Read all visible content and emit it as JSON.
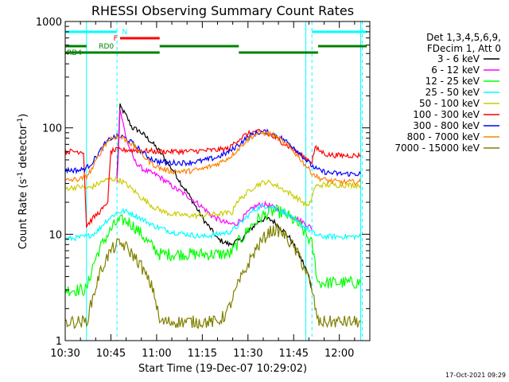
{
  "chart_data": {
    "type": "line",
    "title": "RHESSI Observing Summary Count Rates",
    "xlabel": "Start Time (19-Dec-07 10:29:02)",
    "ylabel_main": "Count Rate (s",
    "ylabel_exp1": "-1",
    "ylabel_mid": " detector",
    "ylabel_exp2": "-1",
    "ylabel_end": ")",
    "x_unit": "minutes since 10:30",
    "xlim": [
      0,
      100
    ],
    "ylim": [
      1,
      1000
    ],
    "yscale": "log",
    "xticks": [
      {
        "t": 0,
        "label": "10:30"
      },
      {
        "t": 15,
        "label": "10:45"
      },
      {
        "t": 30,
        "label": "11:00"
      },
      {
        "t": 45,
        "label": "11:15"
      },
      {
        "t": 60,
        "label": "11:30"
      },
      {
        "t": 75,
        "label": "11:45"
      },
      {
        "t": 90,
        "label": "12:00"
      }
    ],
    "yticks": [
      {
        "v": 1,
        "label": "1"
      },
      {
        "v": 10,
        "label": "10"
      },
      {
        "v": 100,
        "label": "100"
      },
      {
        "v": 1000,
        "label": "1000"
      }
    ],
    "legend_header": [
      "Det 1,3,4,5,6,9,",
      "FDecim 1, Att 0"
    ],
    "legend_position": "right",
    "footer_date": "17-Oct-2021 09:29",
    "vlines_solid": [
      7,
      79,
      97
    ],
    "vlines_dashed": [
      17,
      81,
      97.5
    ],
    "flags": [
      {
        "label": "N",
        "color": "#00ffff",
        "segments": [
          [
            0,
            17
          ],
          [
            81,
            99
          ]
        ],
        "y": 40
      },
      {
        "label": "F",
        "color": "#ff0000",
        "segments": [
          [
            18,
            31
          ]
        ],
        "y": 48
      },
      {
        "label": "RD0",
        "color": "#008000",
        "segments": [
          [
            0,
            7
          ],
          [
            31,
            57
          ],
          [
            83,
            99
          ]
        ],
        "y": 58
      },
      {
        "label": "RD4",
        "color": "#008000",
        "segments": [
          [
            0,
            31
          ],
          [
            57,
            83
          ]
        ],
        "y": 66
      }
    ],
    "series": [
      {
        "name": "3 - 6 keV",
        "color": "#000000",
        "x": [
          17,
          18,
          20,
          22,
          24,
          26,
          28,
          30,
          32,
          34,
          36,
          38,
          40,
          42,
          44,
          46,
          48,
          50,
          52,
          54,
          56,
          58,
          60,
          62,
          64,
          66,
          68,
          70,
          72,
          74,
          76,
          78,
          80,
          81
        ],
        "y": [
          35,
          160,
          130,
          100,
          95,
          85,
          75,
          65,
          55,
          45,
          38,
          30,
          25,
          20,
          16,
          13,
          11,
          9,
          8.5,
          8,
          8.5,
          9,
          10.5,
          12,
          13.5,
          14,
          13.5,
          12,
          10.5,
          9,
          7,
          5.5,
          4,
          3
        ]
      },
      {
        "name": "6 - 12 keV",
        "color": "#ff00ff",
        "x": [
          17,
          18,
          19,
          20,
          21,
          22,
          23,
          24,
          25,
          26,
          28,
          30,
          32,
          34,
          36,
          38,
          40,
          42,
          44,
          46,
          48,
          50,
          52,
          54,
          56,
          58,
          60,
          62,
          64,
          66,
          68,
          70,
          72,
          74,
          76,
          78,
          80,
          81
        ],
        "y": [
          30,
          150,
          110,
          80,
          65,
          55,
          48,
          45,
          42,
          40,
          38,
          36,
          33,
          30,
          27,
          25,
          23,
          21,
          19,
          17,
          15,
          14,
          13,
          12.5,
          12.5,
          14,
          16,
          18,
          19,
          19,
          18,
          17,
          16,
          15,
          14,
          13,
          12,
          11
        ]
      },
      {
        "name": "12 - 25 keV",
        "color": "#00ff00",
        "x": [
          0,
          7,
          9,
          11,
          13,
          15,
          17,
          19,
          21,
          23,
          25,
          27,
          29,
          31,
          33,
          35,
          40,
          45,
          50,
          54,
          55,
          57,
          59,
          61,
          63,
          65,
          67,
          69,
          71,
          73,
          75,
          77,
          79,
          81,
          83,
          90,
          97
        ],
        "y": [
          3,
          3,
          5,
          7,
          9,
          11,
          13,
          13.5,
          13,
          11.5,
          10,
          8.5,
          7.5,
          6.5,
          6.5,
          6.5,
          6.5,
          6.5,
          6.5,
          6.5,
          7,
          8.5,
          10,
          12,
          13.5,
          15,
          16,
          16.5,
          16,
          15,
          13.5,
          12,
          10,
          8,
          3.5,
          3.5,
          3.5
        ]
      },
      {
        "name": "25 - 50 keV",
        "color": "#00ffff",
        "x": [
          0,
          7,
          9,
          11,
          13,
          15,
          17,
          19,
          21,
          23,
          25,
          27,
          29,
          31,
          33,
          35,
          40,
          45,
          50,
          54,
          56,
          58,
          60,
          62,
          64,
          66,
          68,
          70,
          72,
          74,
          76,
          78,
          80,
          82,
          84,
          86,
          88,
          90,
          97
        ],
        "y": [
          9,
          9.5,
          10,
          11,
          13,
          14.5,
          16,
          16.5,
          16,
          15,
          14,
          13,
          12,
          11.5,
          11,
          10.5,
          10,
          9.5,
          10,
          10.5,
          11.5,
          13,
          15,
          17,
          18,
          18.5,
          18,
          17,
          16,
          14.5,
          13,
          12,
          11,
          10,
          9.5,
          9.5,
          9.5,
          9.5,
          9.5
        ]
      },
      {
        "name": "50 - 100 keV",
        "color": "#cccc00",
        "x": [
          0,
          5,
          7,
          9,
          11,
          13,
          15,
          17,
          19,
          21,
          23,
          25,
          27,
          29,
          31,
          33,
          35,
          40,
          45,
          50,
          55,
          56,
          58,
          60,
          62,
          64,
          66,
          68,
          70,
          72,
          74,
          76,
          78,
          80,
          82,
          84,
          90,
          97
        ],
        "y": [
          27,
          28,
          27,
          28,
          30,
          32,
          33,
          33,
          31,
          28,
          25,
          22,
          20,
          18,
          17,
          16,
          15.5,
          15,
          15,
          15.5,
          16,
          20,
          22,
          25,
          28,
          30,
          31,
          30,
          28,
          26,
          24,
          22,
          20,
          18,
          28,
          29,
          29,
          29
        ]
      },
      {
        "name": "100 - 300 keV",
        "color": "#ff0000",
        "x": [
          0,
          6,
          7,
          9,
          11,
          13,
          14,
          15,
          17,
          20,
          25,
          30,
          35,
          40,
          45,
          50,
          54,
          55,
          57,
          59,
          61,
          63,
          65,
          67,
          69,
          71,
          73,
          75,
          77,
          79,
          81,
          82,
          84,
          86,
          90,
          97
        ],
        "y": [
          60,
          60,
          12,
          14,
          16,
          18,
          21,
          60,
          62,
          62,
          61,
          60,
          60,
          60,
          61,
          62,
          64,
          70,
          78,
          85,
          90,
          92,
          90,
          86,
          80,
          74,
          68,
          62,
          56,
          52,
          48,
          65,
          60,
          56,
          55,
          55
        ]
      },
      {
        "name": "300 - 800 keV",
        "color": "#0000ff",
        "x": [
          0,
          5,
          7,
          9,
          11,
          13,
          15,
          17,
          19,
          21,
          23,
          25,
          27,
          29,
          31,
          33,
          35,
          40,
          45,
          50,
          54,
          57,
          59,
          61,
          63,
          65,
          67,
          69,
          71,
          73,
          75,
          77,
          79,
          81,
          83,
          86,
          90,
          97
        ],
        "y": [
          40,
          40,
          42,
          48,
          58,
          70,
          80,
          83,
          82,
          76,
          68,
          60,
          54,
          50,
          48,
          47,
          47,
          47,
          49,
          53,
          60,
          70,
          78,
          85,
          90,
          92,
          90,
          86,
          80,
          73,
          66,
          58,
          50,
          44,
          40,
          38,
          37,
          37
        ]
      },
      {
        "name": "800 - 7000 keV",
        "color": "#ff8000",
        "x": [
          0,
          5,
          7,
          9,
          11,
          13,
          15,
          17,
          19,
          21,
          23,
          25,
          27,
          29,
          31,
          33,
          35,
          40,
          45,
          50,
          54,
          57,
          59,
          61,
          63,
          65,
          67,
          69,
          71,
          73,
          75,
          77,
          79,
          81,
          83,
          86,
          90,
          97
        ],
        "y": [
          32,
          33,
          35,
          42,
          55,
          70,
          80,
          83,
          80,
          74,
          65,
          57,
          50,
          45,
          42,
          40,
          39,
          39,
          41,
          46,
          53,
          64,
          74,
          82,
          88,
          90,
          88,
          83,
          76,
          68,
          60,
          52,
          44,
          38,
          34,
          32,
          31,
          31
        ]
      },
      {
        "name": "7000 - 15000 keV",
        "color": "#808000",
        "x": [
          0,
          7,
          9,
          11,
          13,
          15,
          17,
          19,
          21,
          23,
          25,
          27,
          29,
          31,
          35,
          40,
          45,
          50,
          53,
          55,
          57,
          59,
          61,
          63,
          65,
          67,
          69,
          71,
          73,
          75,
          77,
          79,
          81,
          83,
          90,
          97
        ],
        "y": [
          1.5,
          1.5,
          2.5,
          4,
          5.5,
          7,
          8,
          8,
          7,
          6,
          5,
          3.8,
          3,
          1.5,
          1.5,
          1.5,
          1.5,
          1.5,
          1.8,
          2.5,
          3.5,
          4.5,
          6,
          7.5,
          9,
          10.5,
          11,
          10.5,
          9,
          7.5,
          6,
          4.5,
          3,
          1.5,
          1.5,
          1.5
        ]
      }
    ]
  }
}
